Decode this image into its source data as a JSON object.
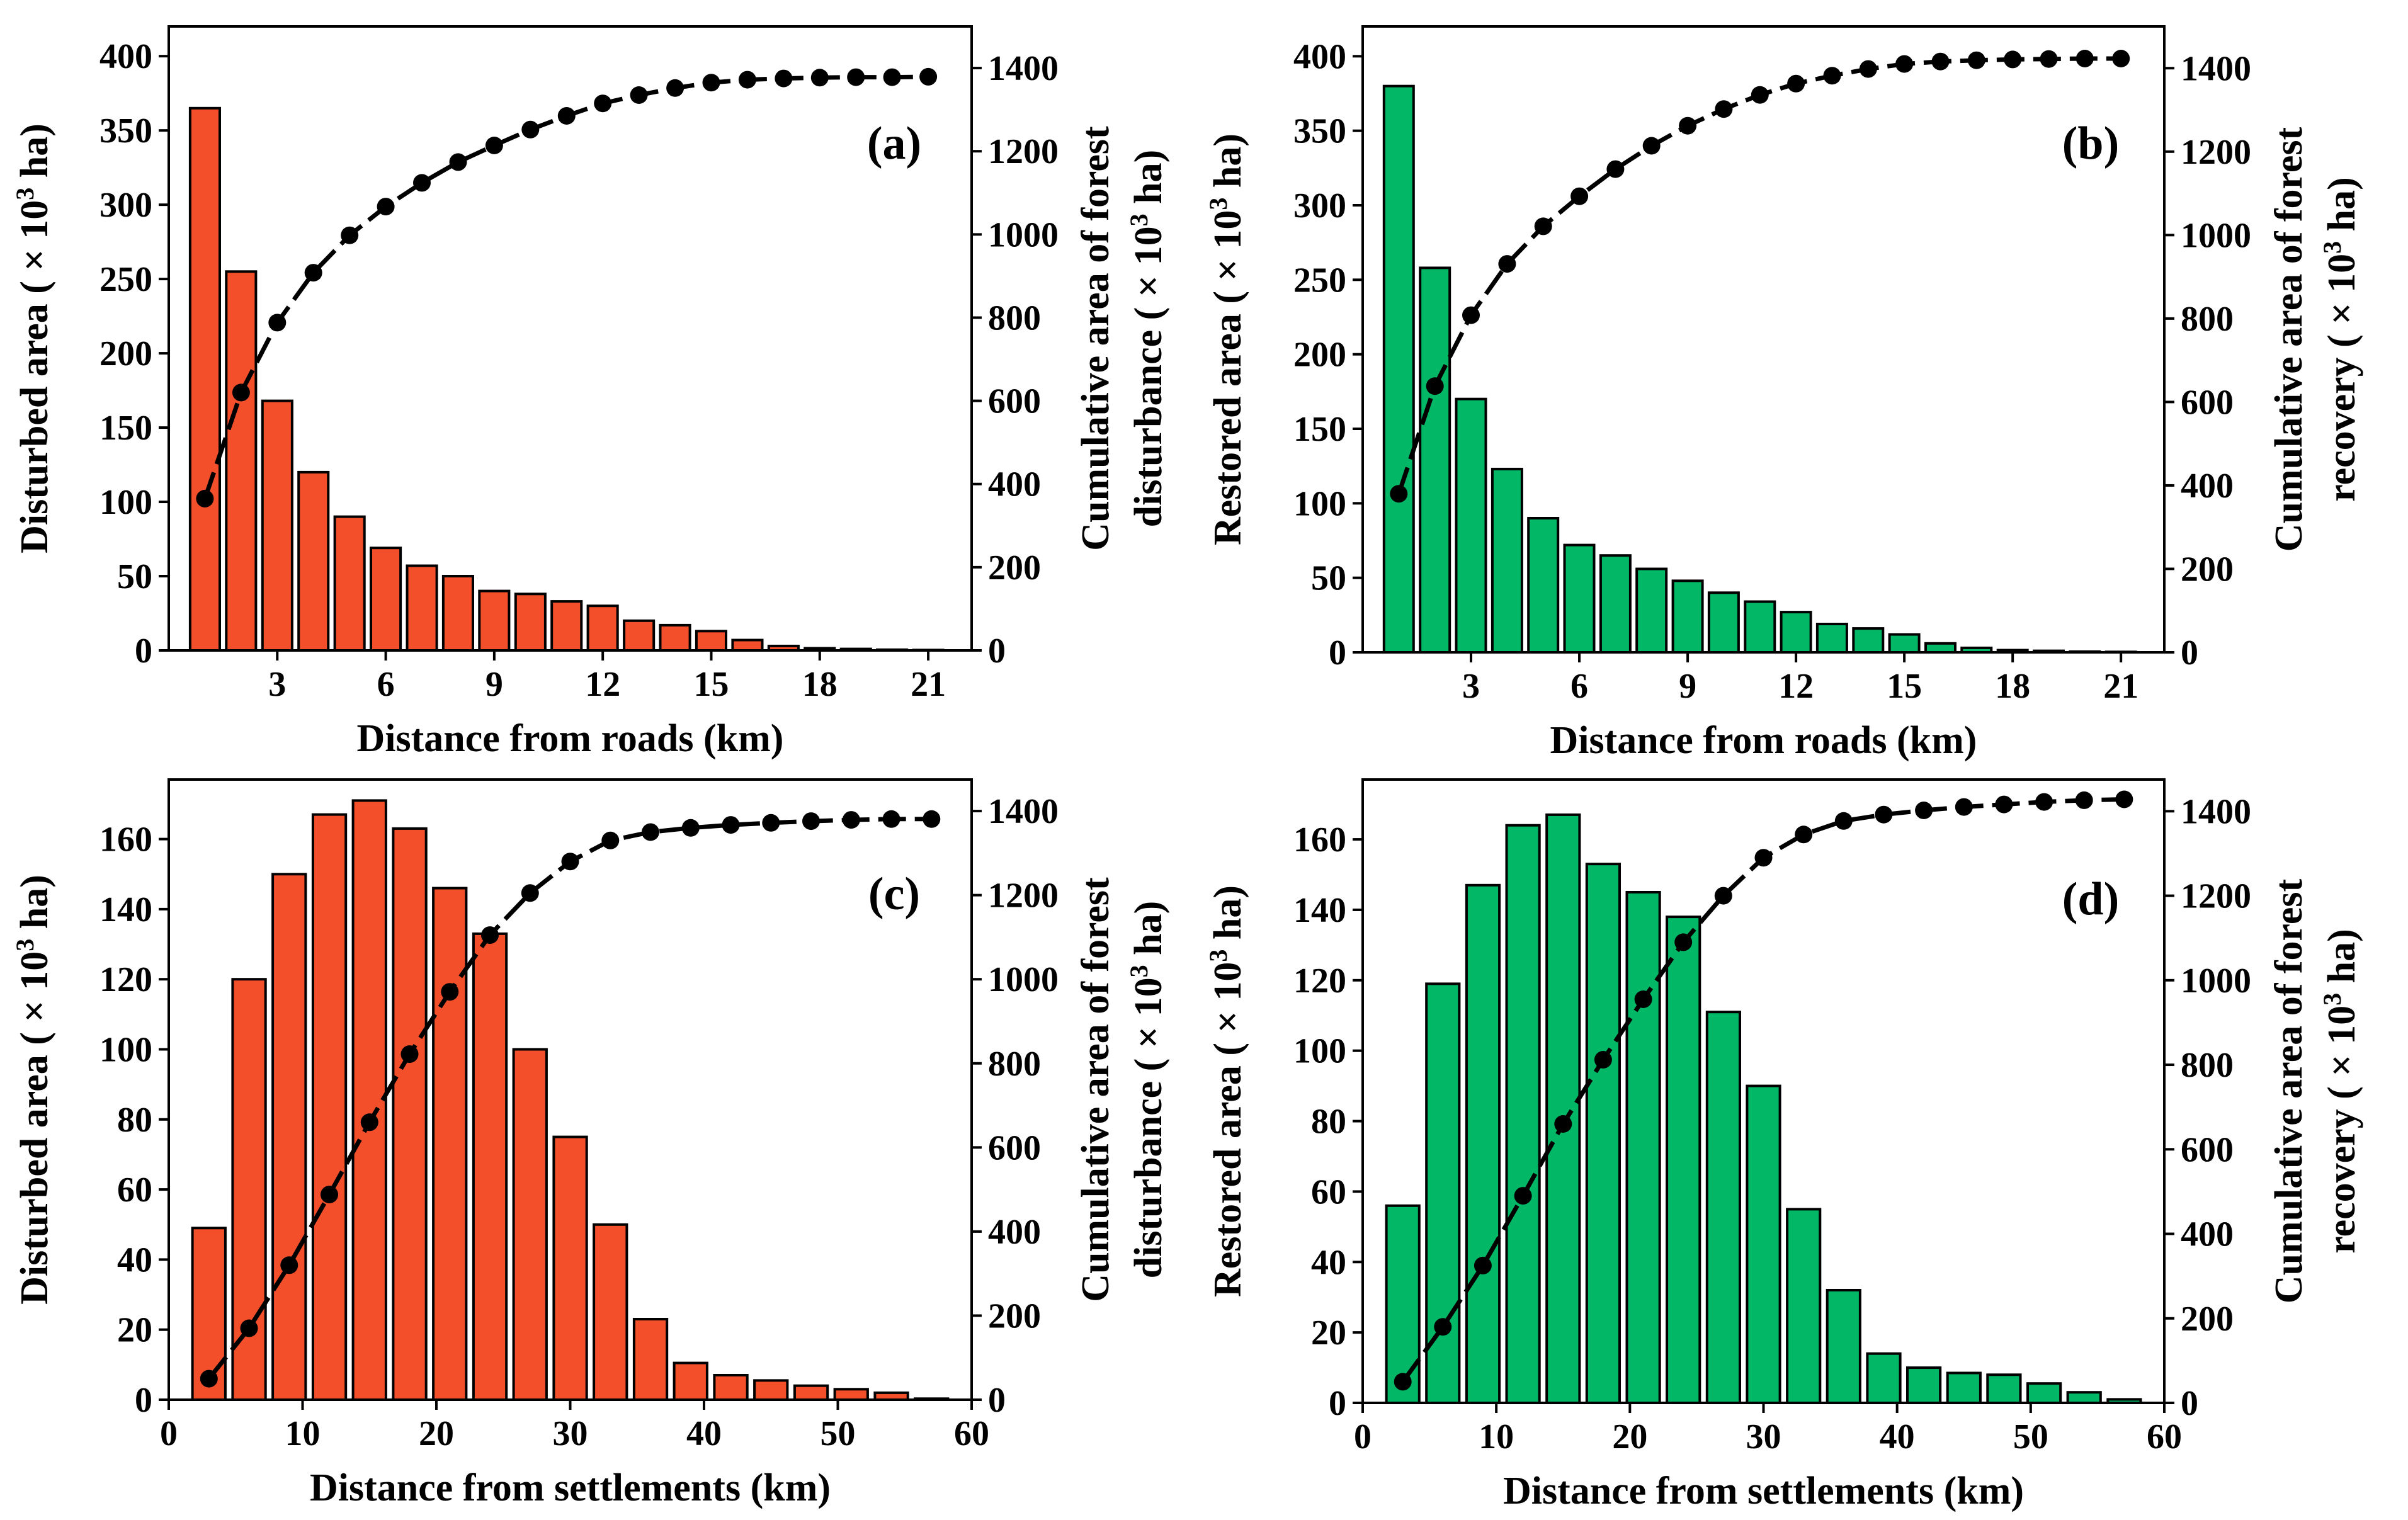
{
  "colors": {
    "disturbed": "#F44F2B",
    "restored": "#02B867",
    "line": "#000000"
  },
  "chart_data": [
    {
      "type": "bar",
      "panel": "(a)",
      "color_role": "disturbed",
      "xlabel": "Distance from roads (km)",
      "ylabel_left": "Disturbed area ( × 10³ ha)",
      "ylabel_right": [
        "Cumulative area of forest",
        "disturbance  ( × 10³ ha)"
      ],
      "xlim": [
        0,
        22.2
      ],
      "xticks": [
        3,
        6,
        9,
        12,
        15,
        18,
        21
      ],
      "ylim_left": [
        0,
        420
      ],
      "yticks_left": [
        0,
        50,
        100,
        150,
        200,
        250,
        300,
        350,
        400
      ],
      "ylim_right": [
        0,
        1500
      ],
      "yticks_right": [
        0,
        200,
        400,
        600,
        800,
        1000,
        1200,
        1400
      ],
      "x": [
        1,
        2,
        3,
        4,
        5,
        6,
        7,
        8,
        9,
        10,
        11,
        12,
        13,
        14,
        15,
        16,
        17,
        18,
        19,
        20,
        21
      ],
      "bars": [
        365,
        255,
        168,
        120,
        90,
        69,
        57,
        50,
        40,
        38,
        33,
        30,
        20,
        17,
        13,
        7,
        3,
        1.5,
        1,
        0.5,
        0.3
      ],
      "cumulative": [
        365,
        620,
        788,
        908,
        998,
        1067,
        1124,
        1174,
        1214,
        1252,
        1285,
        1315,
        1335,
        1352,
        1365,
        1372,
        1375,
        1377,
        1378,
        1378,
        1379
      ]
    },
    {
      "type": "bar",
      "panel": "(b)",
      "color_role": "restored",
      "xlabel": "Distance from roads (km)",
      "ylabel_left": "Restored area ( × 10³ ha)",
      "ylabel_right": [
        "Cumulative  area of forest",
        "recovery ( × 10³ ha)"
      ],
      "xlim": [
        0,
        22.2
      ],
      "xticks": [
        3,
        6,
        9,
        12,
        15,
        18,
        21
      ],
      "ylim_left": [
        0,
        420
      ],
      "yticks_left": [
        0,
        50,
        100,
        150,
        200,
        250,
        300,
        350,
        400
      ],
      "ylim_right": [
        0,
        1500
      ],
      "yticks_right": [
        0,
        200,
        400,
        600,
        800,
        1000,
        1200,
        1400
      ],
      "x": [
        1,
        2,
        3,
        4,
        5,
        6,
        7,
        8,
        9,
        10,
        11,
        12,
        13,
        14,
        15,
        16,
        17,
        18,
        19,
        20,
        21
      ],
      "bars": [
        380,
        258,
        170,
        123,
        90,
        72,
        65,
        56,
        48,
        40,
        34,
        27,
        19,
        16,
        12,
        6,
        3,
        1.5,
        1,
        0.5,
        0.3
      ],
      "cumulative": [
        380,
        638,
        808,
        931,
        1021,
        1093,
        1158,
        1214,
        1262,
        1302,
        1336,
        1363,
        1382,
        1398,
        1410,
        1416,
        1419,
        1421,
        1422,
        1423,
        1423
      ]
    },
    {
      "type": "bar",
      "panel": "(c)",
      "color_role": "disturbed",
      "xlabel": "Distance from settlements (km)",
      "ylabel_left": "Disturbed area ( × 10³ ha)",
      "ylabel_right": [
        "Cumulative area of forest",
        "disturbance ( × 10³ ha)"
      ],
      "xlim": [
        0,
        60
      ],
      "xticks": [
        0,
        10,
        20,
        30,
        40,
        50,
        60
      ],
      "ylim_left": [
        0,
        177
      ],
      "yticks_left": [
        0,
        20,
        40,
        60,
        80,
        100,
        120,
        140,
        160
      ],
      "ylim_right": [
        0,
        1475
      ],
      "yticks_right": [
        0,
        200,
        400,
        600,
        800,
        1000,
        1200,
        1400
      ],
      "x": [
        3,
        6,
        9,
        12,
        15,
        18,
        21,
        24,
        27,
        30,
        33,
        36,
        39,
        42,
        45,
        48,
        51,
        54,
        57
      ],
      "bars": [
        49,
        120,
        150,
        167,
        171,
        163,
        146,
        133,
        100,
        75,
        50,
        23,
        10.5,
        7,
        5.5,
        4,
        3,
        2,
        0.3
      ],
      "cumulative": [
        50,
        170,
        320,
        488,
        660,
        822,
        970,
        1105,
        1205,
        1280,
        1330,
        1350,
        1360,
        1367,
        1372,
        1376,
        1379,
        1381,
        1381
      ]
    },
    {
      "type": "bar",
      "panel": "(d)",
      "color_role": "restored",
      "xlabel": "Distance from settlements (km)",
      "ylabel_left": "Restored area ( × 10³ ha)",
      "ylabel_right": [
        "Cumulative area of forest",
        "recovery ( × 10³ ha)"
      ],
      "xlim": [
        0,
        60
      ],
      "xticks": [
        0,
        10,
        20,
        30,
        40,
        50,
        60
      ],
      "ylim_left": [
        0,
        177
      ],
      "yticks_left": [
        0,
        20,
        40,
        60,
        80,
        100,
        120,
        140,
        160
      ],
      "ylim_right": [
        0,
        1475
      ],
      "yticks_right": [
        0,
        200,
        400,
        600,
        800,
        1000,
        1200,
        1400
      ],
      "x": [
        3,
        6,
        9,
        12,
        15,
        18,
        21,
        24,
        27,
        30,
        33,
        36,
        39,
        42,
        45,
        48,
        51,
        54,
        57
      ],
      "bars": [
        56,
        119,
        147,
        164,
        167,
        153,
        145,
        138,
        111,
        90,
        55,
        32,
        14,
        10,
        8.5,
        8,
        5.5,
        3,
        1
      ],
      "cumulative": [
        50,
        180,
        325,
        490,
        660,
        812,
        955,
        1090,
        1200,
        1290,
        1345,
        1377,
        1392,
        1402,
        1410,
        1416,
        1422,
        1426,
        1428
      ]
    }
  ]
}
